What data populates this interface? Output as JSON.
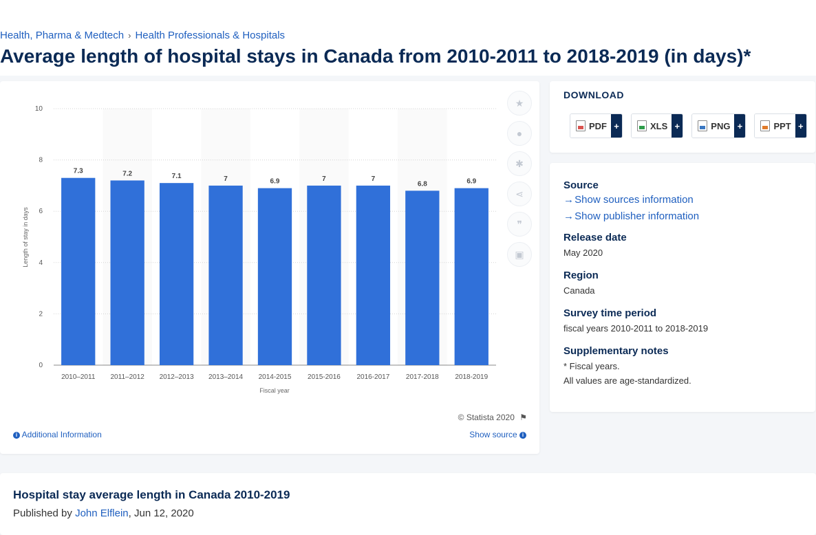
{
  "breadcrumb": {
    "items": [
      "Health, Pharma & Medtech",
      "Health Professionals & Hospitals"
    ],
    "separator": "›"
  },
  "page_title": "Average length of hospital stays in Canada from 2010-2011 to 2018-2019 (in days)*",
  "chart_data": {
    "type": "bar",
    "categories": [
      "2010–2011",
      "2011–2012",
      "2012–2013",
      "2013–2014",
      "2014-2015",
      "2015-2016",
      "2016-2017",
      "2017-2018",
      "2018-2019"
    ],
    "values": [
      7.3,
      7.2,
      7.1,
      7,
      6.9,
      7,
      7,
      6.8,
      6.9
    ],
    "data_labels": [
      "7.3",
      "7.2",
      "7.1",
      "7",
      "6.9",
      "7",
      "7",
      "6.8",
      "6.9"
    ],
    "title": "",
    "xlabel": "Fiscal year",
    "ylabel": "Length of stay in days",
    "ylim": [
      0,
      10
    ],
    "yticks": [
      0,
      2,
      4,
      6,
      8,
      10
    ],
    "grid": true,
    "bar_color": "#3070d9"
  },
  "chart_footer": {
    "credit": "© Statista 2020",
    "additional_info": "Additional Information",
    "show_source": "Show source",
    "flag_icon": "flag-icon"
  },
  "toolbar": {
    "icons": [
      "star-icon",
      "bell-icon",
      "gear-icon",
      "share-icon",
      "quote-icon",
      "print-icon"
    ]
  },
  "download": {
    "title": "DOWNLOAD",
    "buttons": [
      {
        "label": "PDF",
        "icon": "pdf-file-icon"
      },
      {
        "label": "XLS",
        "icon": "xls-file-icon"
      },
      {
        "label": "PNG",
        "icon": "png-file-icon"
      },
      {
        "label": "PPT",
        "icon": "ppt-file-icon"
      }
    ],
    "plus": "+"
  },
  "meta": {
    "source_heading": "Source",
    "show_sources": "Show sources information",
    "show_publisher": "Show publisher information",
    "release_heading": "Release date",
    "release_value": "May 2020",
    "region_heading": "Region",
    "region_value": "Canada",
    "survey_heading": "Survey time period",
    "survey_value": "fiscal years 2010-2011 to 2018-2019",
    "notes_heading": "Supplementary notes",
    "notes_line1": "* Fiscal years.",
    "notes_line2": "All values are age-standardized."
  },
  "article": {
    "title": "Hospital stay average length in Canada 2010-2019",
    "published_prefix": "Published by",
    "author": "John Elflein",
    "date": ", Jun 12, 2020"
  },
  "colors": {
    "accent": "#1f5fbf",
    "navy": "#0b2a55",
    "bar": "#3070d9"
  }
}
